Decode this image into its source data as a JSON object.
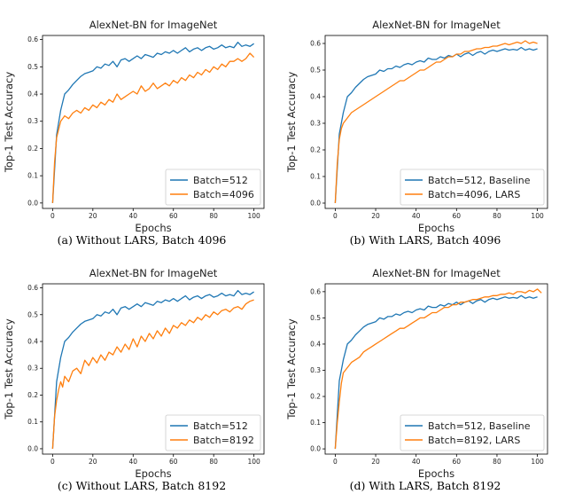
{
  "chart_data": [
    {
      "type": "line",
      "title": "AlexNet-BN for ImageNet",
      "xlabel": "Epochs",
      "ylabel": "Top-1 Test Accuracy",
      "xlim": [
        -5,
        105
      ],
      "ylim": [
        -0.02,
        0.615
      ],
      "xticks": [
        0,
        20,
        40,
        60,
        80,
        100
      ],
      "yticks": [
        0.0,
        0.1,
        0.2,
        0.3,
        0.4,
        0.5,
        0.6
      ],
      "legend": "lower-right",
      "caption": "(a) Without LARS, Batch 4096",
      "series": [
        {
          "name": "Batch=512",
          "color": "#1f77b4",
          "x": [
            0,
            2,
            4,
            6,
            8,
            10,
            12,
            14,
            16,
            18,
            20,
            22,
            24,
            26,
            28,
            30,
            32,
            34,
            36,
            38,
            40,
            42,
            44,
            46,
            48,
            50,
            52,
            54,
            56,
            58,
            60,
            62,
            64,
            66,
            68,
            70,
            72,
            74,
            76,
            78,
            80,
            82,
            84,
            86,
            88,
            90,
            92,
            94,
            96,
            98,
            100
          ],
          "y": [
            0.0,
            0.25,
            0.34,
            0.4,
            0.415,
            0.435,
            0.45,
            0.465,
            0.475,
            0.48,
            0.485,
            0.5,
            0.495,
            0.51,
            0.505,
            0.52,
            0.5,
            0.525,
            0.53,
            0.52,
            0.53,
            0.54,
            0.53,
            0.545,
            0.54,
            0.535,
            0.55,
            0.545,
            0.555,
            0.55,
            0.56,
            0.55,
            0.56,
            0.57,
            0.555,
            0.565,
            0.57,
            0.56,
            0.57,
            0.575,
            0.565,
            0.57,
            0.58,
            0.57,
            0.575,
            0.57,
            0.59,
            0.575,
            0.58,
            0.575,
            0.585
          ]
        },
        {
          "name": "Batch=4096",
          "color": "#ff7f0e",
          "x": [
            0,
            1,
            2,
            3,
            4,
            5,
            6,
            8,
            10,
            12,
            14,
            16,
            18,
            20,
            22,
            24,
            26,
            28,
            30,
            32,
            34,
            36,
            38,
            40,
            42,
            44,
            46,
            48,
            50,
            52,
            54,
            56,
            58,
            60,
            62,
            64,
            66,
            68,
            70,
            72,
            74,
            76,
            78,
            80,
            82,
            84,
            86,
            88,
            90,
            92,
            94,
            96,
            98,
            100
          ],
          "y": [
            0.0,
            0.15,
            0.24,
            0.27,
            0.3,
            0.31,
            0.32,
            0.31,
            0.33,
            0.34,
            0.33,
            0.35,
            0.34,
            0.36,
            0.35,
            0.37,
            0.36,
            0.38,
            0.37,
            0.4,
            0.38,
            0.39,
            0.4,
            0.41,
            0.4,
            0.43,
            0.41,
            0.42,
            0.44,
            0.42,
            0.43,
            0.44,
            0.43,
            0.45,
            0.44,
            0.46,
            0.45,
            0.47,
            0.46,
            0.48,
            0.47,
            0.49,
            0.48,
            0.5,
            0.49,
            0.51,
            0.5,
            0.52,
            0.52,
            0.53,
            0.52,
            0.53,
            0.55,
            0.535
          ]
        }
      ]
    },
    {
      "type": "line",
      "title": "AlexNet-BN for ImageNet",
      "xlabel": "Epochs",
      "ylabel": "Top-1 Test Accuracy",
      "xlim": [
        -5,
        105
      ],
      "ylim": [
        -0.02,
        0.63
      ],
      "xticks": [
        0,
        20,
        40,
        60,
        80,
        100
      ],
      "yticks": [
        0.0,
        0.1,
        0.2,
        0.3,
        0.4,
        0.5,
        0.6
      ],
      "legend": "lower-right",
      "caption": "(b) With LARS, Batch 4096",
      "series": [
        {
          "name": "Batch=512, Baseline",
          "color": "#1f77b4",
          "x": [
            0,
            2,
            4,
            6,
            8,
            10,
            12,
            14,
            16,
            18,
            20,
            22,
            24,
            26,
            28,
            30,
            32,
            34,
            36,
            38,
            40,
            42,
            44,
            46,
            48,
            50,
            52,
            54,
            56,
            58,
            60,
            62,
            64,
            66,
            68,
            70,
            72,
            74,
            76,
            78,
            80,
            82,
            84,
            86,
            88,
            90,
            92,
            94,
            96,
            98,
            100
          ],
          "y": [
            0.0,
            0.26,
            0.34,
            0.4,
            0.415,
            0.435,
            0.45,
            0.465,
            0.475,
            0.48,
            0.485,
            0.5,
            0.495,
            0.505,
            0.505,
            0.515,
            0.51,
            0.52,
            0.525,
            0.52,
            0.53,
            0.535,
            0.53,
            0.545,
            0.54,
            0.54,
            0.55,
            0.545,
            0.555,
            0.55,
            0.56,
            0.55,
            0.56,
            0.565,
            0.555,
            0.565,
            0.57,
            0.56,
            0.57,
            0.575,
            0.57,
            0.575,
            0.58,
            0.575,
            0.578,
            0.575,
            0.585,
            0.575,
            0.58,
            0.575,
            0.58
          ]
        },
        {
          "name": "Batch=4096, LARS",
          "color": "#ff7f0e",
          "x": [
            0,
            1,
            2,
            3,
            4,
            6,
            8,
            10,
            12,
            14,
            16,
            18,
            20,
            22,
            24,
            26,
            28,
            30,
            32,
            34,
            36,
            38,
            40,
            42,
            44,
            46,
            48,
            50,
            52,
            54,
            56,
            58,
            60,
            62,
            64,
            66,
            68,
            70,
            72,
            74,
            76,
            78,
            80,
            82,
            84,
            86,
            88,
            90,
            92,
            94,
            96,
            98,
            100
          ],
          "y": [
            0.0,
            0.15,
            0.24,
            0.28,
            0.3,
            0.32,
            0.34,
            0.35,
            0.36,
            0.37,
            0.38,
            0.39,
            0.4,
            0.41,
            0.42,
            0.43,
            0.44,
            0.45,
            0.46,
            0.46,
            0.47,
            0.48,
            0.49,
            0.5,
            0.5,
            0.51,
            0.52,
            0.53,
            0.53,
            0.54,
            0.55,
            0.55,
            0.56,
            0.56,
            0.57,
            0.57,
            0.575,
            0.58,
            0.58,
            0.585,
            0.585,
            0.59,
            0.59,
            0.595,
            0.6,
            0.595,
            0.6,
            0.605,
            0.6,
            0.61,
            0.6,
            0.605,
            0.6
          ]
        }
      ]
    },
    {
      "type": "line",
      "title": "AlexNet-BN for ImageNet",
      "xlabel": "Epochs",
      "ylabel": "Top-1 Test Accuracy",
      "xlim": [
        -5,
        105
      ],
      "ylim": [
        -0.02,
        0.615
      ],
      "xticks": [
        0,
        20,
        40,
        60,
        80,
        100
      ],
      "yticks": [
        0.0,
        0.1,
        0.2,
        0.3,
        0.4,
        0.5,
        0.6
      ],
      "legend": "lower-right",
      "caption": "(c) Without LARS, Batch 8192",
      "series": [
        {
          "name": "Batch=512",
          "color": "#1f77b4",
          "x": [
            0,
            2,
            4,
            6,
            8,
            10,
            12,
            14,
            16,
            18,
            20,
            22,
            24,
            26,
            28,
            30,
            32,
            34,
            36,
            38,
            40,
            42,
            44,
            46,
            48,
            50,
            52,
            54,
            56,
            58,
            60,
            62,
            64,
            66,
            68,
            70,
            72,
            74,
            76,
            78,
            80,
            82,
            84,
            86,
            88,
            90,
            92,
            94,
            96,
            98,
            100
          ],
          "y": [
            0.0,
            0.25,
            0.34,
            0.4,
            0.415,
            0.435,
            0.45,
            0.465,
            0.475,
            0.48,
            0.485,
            0.5,
            0.495,
            0.51,
            0.505,
            0.52,
            0.5,
            0.525,
            0.53,
            0.52,
            0.53,
            0.54,
            0.53,
            0.545,
            0.54,
            0.535,
            0.55,
            0.545,
            0.555,
            0.55,
            0.56,
            0.55,
            0.56,
            0.57,
            0.555,
            0.565,
            0.57,
            0.56,
            0.57,
            0.575,
            0.565,
            0.57,
            0.58,
            0.57,
            0.575,
            0.57,
            0.59,
            0.575,
            0.58,
            0.575,
            0.585
          ]
        },
        {
          "name": "Batch=8192",
          "color": "#ff7f0e",
          "x": [
            0,
            1,
            2,
            3,
            4,
            5,
            6,
            8,
            10,
            12,
            14,
            16,
            18,
            20,
            22,
            24,
            26,
            28,
            30,
            32,
            34,
            36,
            38,
            40,
            42,
            44,
            46,
            48,
            50,
            52,
            54,
            56,
            58,
            60,
            62,
            64,
            66,
            68,
            70,
            72,
            74,
            76,
            78,
            80,
            82,
            84,
            86,
            88,
            90,
            92,
            94,
            96,
            98,
            100
          ],
          "y": [
            0.0,
            0.12,
            0.18,
            0.22,
            0.25,
            0.23,
            0.27,
            0.25,
            0.29,
            0.3,
            0.28,
            0.33,
            0.31,
            0.34,
            0.32,
            0.35,
            0.33,
            0.36,
            0.35,
            0.38,
            0.36,
            0.39,
            0.37,
            0.41,
            0.38,
            0.42,
            0.4,
            0.43,
            0.41,
            0.44,
            0.42,
            0.45,
            0.43,
            0.46,
            0.45,
            0.47,
            0.46,
            0.48,
            0.47,
            0.49,
            0.48,
            0.5,
            0.49,
            0.51,
            0.5,
            0.515,
            0.52,
            0.51,
            0.525,
            0.53,
            0.52,
            0.54,
            0.55,
            0.555
          ]
        }
      ]
    },
    {
      "type": "line",
      "title": "AlexNet-BN for ImageNet",
      "xlabel": "Epochs",
      "ylabel": "Top-1 Test Accuracy",
      "xlim": [
        -5,
        105
      ],
      "ylim": [
        -0.02,
        0.63
      ],
      "xticks": [
        0,
        20,
        40,
        60,
        80,
        100
      ],
      "yticks": [
        0.0,
        0.1,
        0.2,
        0.3,
        0.4,
        0.5,
        0.6
      ],
      "legend": "lower-right",
      "caption": "(d) With LARS, Batch 8192",
      "series": [
        {
          "name": "Batch=512, Baseline",
          "color": "#1f77b4",
          "x": [
            0,
            2,
            4,
            6,
            8,
            10,
            12,
            14,
            16,
            18,
            20,
            22,
            24,
            26,
            28,
            30,
            32,
            34,
            36,
            38,
            40,
            42,
            44,
            46,
            48,
            50,
            52,
            54,
            56,
            58,
            60,
            62,
            64,
            66,
            68,
            70,
            72,
            74,
            76,
            78,
            80,
            82,
            84,
            86,
            88,
            90,
            92,
            94,
            96,
            98,
            100
          ],
          "y": [
            0.0,
            0.26,
            0.34,
            0.4,
            0.415,
            0.435,
            0.45,
            0.465,
            0.475,
            0.48,
            0.485,
            0.5,
            0.495,
            0.505,
            0.505,
            0.515,
            0.51,
            0.52,
            0.525,
            0.52,
            0.53,
            0.535,
            0.53,
            0.545,
            0.54,
            0.54,
            0.55,
            0.545,
            0.555,
            0.55,
            0.56,
            0.55,
            0.56,
            0.565,
            0.555,
            0.565,
            0.57,
            0.56,
            0.57,
            0.575,
            0.57,
            0.575,
            0.58,
            0.575,
            0.578,
            0.575,
            0.585,
            0.575,
            0.58,
            0.575,
            0.58
          ]
        },
        {
          "name": "Batch=8192, LARS",
          "color": "#ff7f0e",
          "x": [
            0,
            1,
            2,
            3,
            4,
            6,
            8,
            10,
            12,
            14,
            16,
            18,
            20,
            22,
            24,
            26,
            28,
            30,
            32,
            34,
            36,
            38,
            40,
            42,
            44,
            46,
            48,
            50,
            52,
            54,
            56,
            58,
            60,
            62,
            64,
            66,
            68,
            70,
            72,
            74,
            76,
            78,
            80,
            82,
            84,
            86,
            88,
            90,
            92,
            94,
            96,
            98,
            100,
            102
          ],
          "y": [
            0.0,
            0.1,
            0.18,
            0.25,
            0.29,
            0.31,
            0.33,
            0.34,
            0.35,
            0.37,
            0.38,
            0.39,
            0.4,
            0.41,
            0.42,
            0.43,
            0.44,
            0.45,
            0.46,
            0.46,
            0.47,
            0.48,
            0.49,
            0.5,
            0.5,
            0.51,
            0.52,
            0.52,
            0.53,
            0.54,
            0.54,
            0.55,
            0.55,
            0.56,
            0.56,
            0.565,
            0.57,
            0.57,
            0.575,
            0.58,
            0.58,
            0.585,
            0.585,
            0.59,
            0.59,
            0.595,
            0.59,
            0.6,
            0.6,
            0.595,
            0.605,
            0.6,
            0.61,
            0.595
          ]
        }
      ]
    }
  ]
}
